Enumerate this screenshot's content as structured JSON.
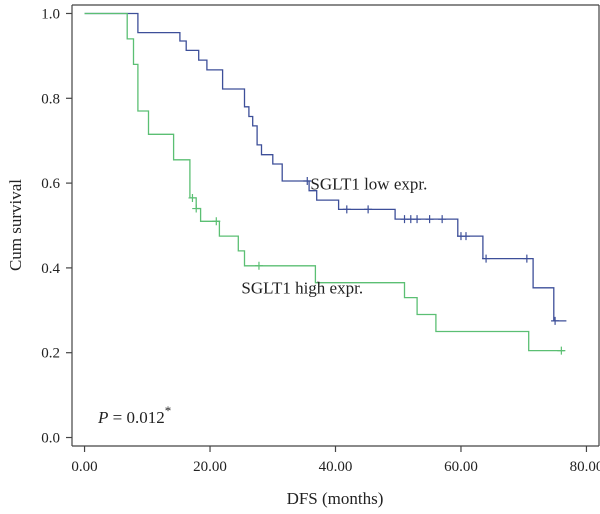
{
  "chart_data": {
    "type": "line",
    "step": true,
    "xlabel": "DFS (months)",
    "ylabel": "Cum survival",
    "xlim": [
      -2,
      82
    ],
    "ylim": [
      -0.02,
      1.02
    ],
    "x_ticks": [
      0,
      20,
      40,
      60,
      80
    ],
    "x_tick_labels": [
      "0.00",
      "20.00",
      "40.00",
      "60.00",
      "80.00"
    ],
    "y_ticks": [
      0.0,
      0.2,
      0.4,
      0.6,
      0.8,
      1.0
    ],
    "y_tick_labels": [
      "0.0",
      "0.2",
      "0.4",
      "0.6",
      "0.8",
      "1.0"
    ],
    "grid": false,
    "annotation": {
      "italic": "P",
      "text": " = 0.012",
      "superscript": "*"
    },
    "series": [
      {
        "name": "SGLT1 low expr.",
        "color": "#3d4f99",
        "points": [
          [
            0,
            1.0
          ],
          [
            8.5,
            1.0
          ],
          [
            8.5,
            0.955
          ],
          [
            15.2,
            0.955
          ],
          [
            15.2,
            0.935
          ],
          [
            16.2,
            0.935
          ],
          [
            16.2,
            0.913
          ],
          [
            18.2,
            0.913
          ],
          [
            18.2,
            0.89
          ],
          [
            19.5,
            0.89
          ],
          [
            19.5,
            0.867
          ],
          [
            22.0,
            0.867
          ],
          [
            22.0,
            0.822
          ],
          [
            25.5,
            0.822
          ],
          [
            25.5,
            0.78
          ],
          [
            26.2,
            0.78
          ],
          [
            26.2,
            0.757
          ],
          [
            26.8,
            0.757
          ],
          [
            26.8,
            0.735
          ],
          [
            27.5,
            0.735
          ],
          [
            27.5,
            0.69
          ],
          [
            28.2,
            0.69
          ],
          [
            28.2,
            0.667
          ],
          [
            30.0,
            0.667
          ],
          [
            30.0,
            0.645
          ],
          [
            31.5,
            0.645
          ],
          [
            31.5,
            0.605
          ],
          [
            35.8,
            0.605
          ],
          [
            35.8,
            0.582
          ],
          [
            37.0,
            0.582
          ],
          [
            37.0,
            0.56
          ],
          [
            40.5,
            0.56
          ],
          [
            40.5,
            0.538
          ],
          [
            49.5,
            0.538
          ],
          [
            49.5,
            0.515
          ],
          [
            59.5,
            0.515
          ],
          [
            59.5,
            0.475
          ],
          [
            63.5,
            0.475
          ],
          [
            63.5,
            0.422
          ],
          [
            71.5,
            0.422
          ],
          [
            71.5,
            0.353
          ],
          [
            74.8,
            0.353
          ],
          [
            74.8,
            0.275
          ],
          [
            76.8,
            0.275
          ]
        ],
        "censored": [
          [
            35.5,
            0.605
          ],
          [
            41.8,
            0.538
          ],
          [
            45.2,
            0.538
          ],
          [
            51.0,
            0.515
          ],
          [
            52.0,
            0.515
          ],
          [
            53.0,
            0.515
          ],
          [
            55.0,
            0.515
          ],
          [
            57.0,
            0.515
          ],
          [
            60.0,
            0.475
          ],
          [
            60.8,
            0.475
          ],
          [
            64.0,
            0.422
          ],
          [
            70.5,
            0.422
          ],
          [
            75.0,
            0.275
          ]
        ]
      },
      {
        "name": "SGLT1 high expr.",
        "color": "#5bbf73",
        "points": [
          [
            0,
            1.0
          ],
          [
            6.8,
            1.0
          ],
          [
            6.8,
            0.94
          ],
          [
            7.8,
            0.94
          ],
          [
            7.8,
            0.88
          ],
          [
            8.5,
            0.88
          ],
          [
            8.5,
            0.77
          ],
          [
            10.2,
            0.77
          ],
          [
            10.2,
            0.715
          ],
          [
            14.2,
            0.715
          ],
          [
            14.2,
            0.655
          ],
          [
            15.0,
            0.655
          ],
          [
            15.0,
            0.655
          ],
          [
            16.8,
            0.655
          ],
          [
            16.8,
            0.565
          ],
          [
            17.8,
            0.565
          ],
          [
            17.8,
            0.54
          ],
          [
            18.5,
            0.54
          ],
          [
            18.5,
            0.51
          ],
          [
            21.5,
            0.51
          ],
          [
            21.5,
            0.475
          ],
          [
            24.5,
            0.475
          ],
          [
            24.5,
            0.44
          ],
          [
            25.5,
            0.44
          ],
          [
            25.5,
            0.405
          ],
          [
            36.8,
            0.405
          ],
          [
            36.8,
            0.365
          ],
          [
            51.0,
            0.365
          ],
          [
            51.0,
            0.33
          ],
          [
            53.0,
            0.33
          ],
          [
            53.0,
            0.29
          ],
          [
            56.0,
            0.29
          ],
          [
            56.0,
            0.25
          ],
          [
            70.8,
            0.25
          ],
          [
            70.8,
            0.205
          ],
          [
            76.5,
            0.205
          ]
        ],
        "censored": [
          [
            17.2,
            0.565
          ],
          [
            17.8,
            0.54
          ],
          [
            21.0,
            0.51
          ],
          [
            27.8,
            0.405
          ],
          [
            76.0,
            0.205
          ]
        ]
      }
    ],
    "series_labels": [
      {
        "series": 0,
        "x": 36.0,
        "y": 0.585
      },
      {
        "series": 1,
        "x": 25.0,
        "y": 0.34
      }
    ]
  }
}
